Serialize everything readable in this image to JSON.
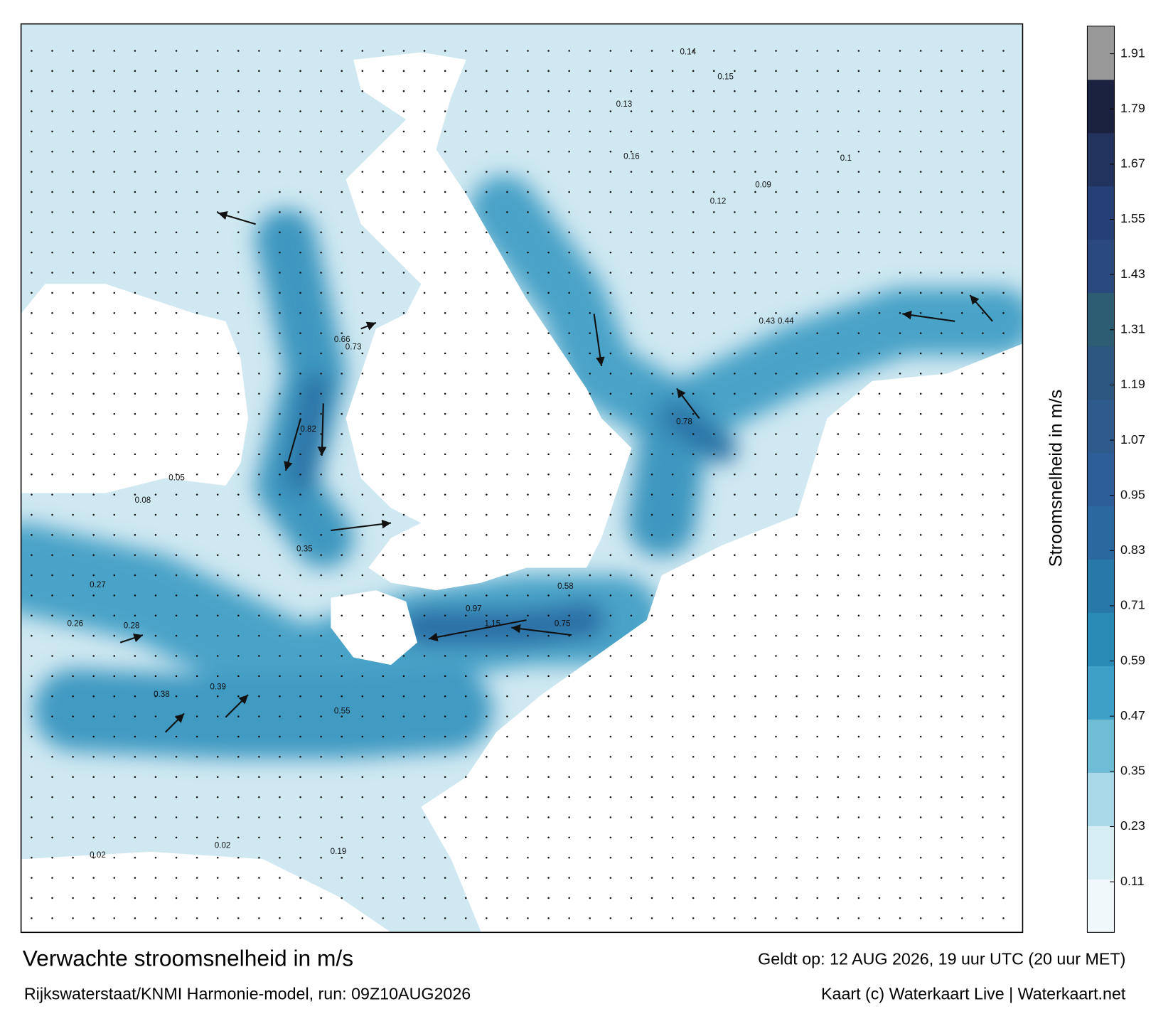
{
  "map": {
    "title": "Verwachte stroomsnelheid in m/s",
    "subtitle": "Rijkswaterstaat/KNMI Harmonie-model, run: 09Z10AUG2026",
    "valid_time": "Geldt op: 12 AUG 2026, 19 uur UTC (20 uur MET)",
    "credit": "Kaart (c) Waterkaart Live | Waterkaart.net",
    "colorbar": {
      "label": "Stroomsnelheid in m/s",
      "lim": [
        0,
        1.97
      ],
      "ticks": [
        0.11,
        0.23,
        0.35,
        0.47,
        0.59,
        0.71,
        0.83,
        0.95,
        1.07,
        1.19,
        1.31,
        1.43,
        1.55,
        1.67,
        1.79,
        1.91
      ],
      "colors": [
        "#f1f8fb",
        "#d6edf4",
        "#a9d8e8",
        "#6fbcd7",
        "#3ea0c6",
        "#2a8ab6",
        "#2979a8",
        "#2b68a0",
        "#2d5e98",
        "#2e5a8c",
        "#2d5680",
        "#2c5d73",
        "#2a4a7e",
        "#263f74",
        "#22335e",
        "#1b2240",
        "#999999"
      ]
    },
    "speed_labels": [
      "1.15",
      "0.97",
      "0.82",
      "0.78",
      "0.66",
      "0.73",
      "0.44",
      "0.43",
      "0.38",
      "0.39",
      "0.35",
      "0.28",
      "0.26",
      "0.27",
      "0.13",
      "0.14",
      "0.15",
      "0.12",
      "0.1",
      "0.09",
      "0.16",
      "0.02",
      "0.02",
      "0.19",
      "0.05",
      "0.08",
      "0.55",
      "0.58",
      "0.75"
    ]
  }
}
